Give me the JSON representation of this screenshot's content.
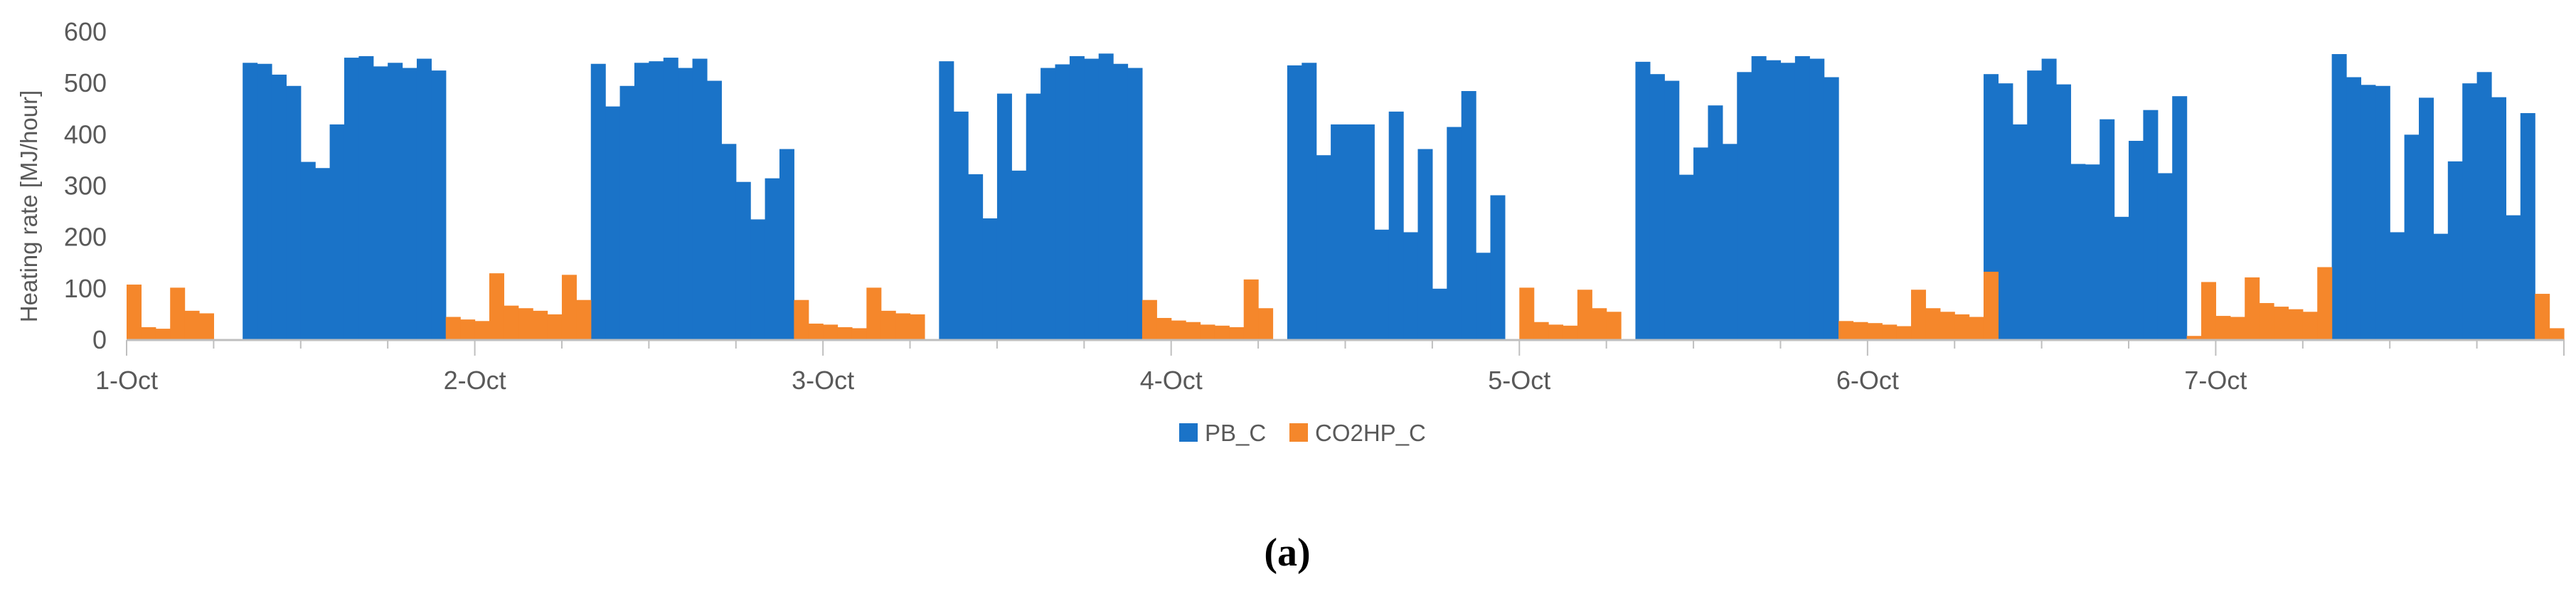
{
  "chart_data": {
    "type": "bar",
    "ylabel": "Heating rate [MJ/hour]",
    "ylim": [
      0,
      600
    ],
    "yticks": [
      0,
      100,
      200,
      300,
      400,
      500,
      600
    ],
    "day_labels": [
      "1-Oct",
      "2-Oct",
      "3-Oct",
      "4-Oct",
      "5-Oct",
      "6-Oct",
      "7-Oct"
    ],
    "hours_per_day": 24,
    "grid": false,
    "legend_position": "bottom",
    "series": [
      {
        "name": "PB_C",
        "color": "#1a73c8",
        "values": [
          0,
          0,
          0,
          0,
          0,
          0,
          0,
          0,
          540,
          538,
          517,
          495,
          347,
          335,
          420,
          550,
          553,
          533,
          540,
          530,
          548,
          525,
          0,
          0,
          0,
          0,
          0,
          0,
          0,
          0,
          0,
          0,
          538,
          455,
          495,
          540,
          543,
          550,
          530,
          548,
          505,
          382,
          308,
          235,
          315,
          372,
          0,
          0,
          0,
          0,
          0,
          0,
          0,
          0,
          0,
          0,
          543,
          445,
          323,
          237,
          480,
          330,
          480,
          530,
          537,
          553,
          548,
          558,
          538,
          530,
          0,
          0,
          0,
          0,
          0,
          0,
          0,
          0,
          0,
          0,
          535,
          540,
          360,
          420,
          420,
          420,
          215,
          445,
          210,
          372,
          100,
          415,
          485,
          170,
          282,
          0,
          0,
          0,
          0,
          0,
          0,
          0,
          0,
          0,
          542,
          518,
          505,
          322,
          375,
          457,
          382,
          522,
          553,
          545,
          540,
          553,
          548,
          512,
          0,
          0,
          0,
          0,
          0,
          0,
          0,
          0,
          0,
          0,
          518,
          500,
          420,
          525,
          548,
          498,
          343,
          342,
          430,
          240,
          388,
          448,
          325,
          475,
          0,
          0,
          0,
          0,
          0,
          0,
          0,
          0,
          0,
          0,
          557,
          512,
          497,
          495,
          210,
          400,
          472,
          207,
          348,
          500,
          522,
          473,
          243,
          442,
          0,
          0
        ]
      },
      {
        "name": "CO2HP_C",
        "color": "#f5872b",
        "values": [
          108,
          25,
          22,
          102,
          57,
          52,
          0,
          0,
          0,
          0,
          0,
          0,
          0,
          0,
          0,
          0,
          0,
          0,
          0,
          0,
          0,
          0,
          45,
          40,
          37,
          130,
          67,
          62,
          57,
          50,
          127,
          78,
          0,
          0,
          0,
          0,
          0,
          0,
          0,
          0,
          0,
          0,
          0,
          0,
          0,
          0,
          78,
          32,
          30,
          25,
          23,
          102,
          57,
          52,
          50,
          0,
          0,
          0,
          0,
          0,
          0,
          0,
          0,
          0,
          0,
          0,
          0,
          0,
          0,
          0,
          78,
          43,
          38,
          35,
          30,
          28,
          25,
          118,
          62,
          0,
          0,
          0,
          0,
          0,
          0,
          0,
          0,
          0,
          0,
          0,
          0,
          0,
          0,
          0,
          0,
          0,
          102,
          35,
          30,
          28,
          98,
          62,
          55,
          0,
          0,
          0,
          0,
          0,
          0,
          0,
          0,
          0,
          0,
          0,
          0,
          0,
          0,
          0,
          37,
          35,
          33,
          30,
          27,
          98,
          62,
          55,
          50,
          45,
          133,
          0,
          0,
          0,
          0,
          0,
          0,
          0,
          0,
          0,
          0,
          0,
          0,
          0,
          8,
          113,
          47,
          45,
          122,
          72,
          65,
          60,
          55,
          142,
          0,
          0,
          0,
          0,
          0,
          0,
          0,
          0,
          0,
          0,
          0,
          0,
          0,
          0,
          90,
          23
        ]
      }
    ]
  },
  "caption": "(a)"
}
